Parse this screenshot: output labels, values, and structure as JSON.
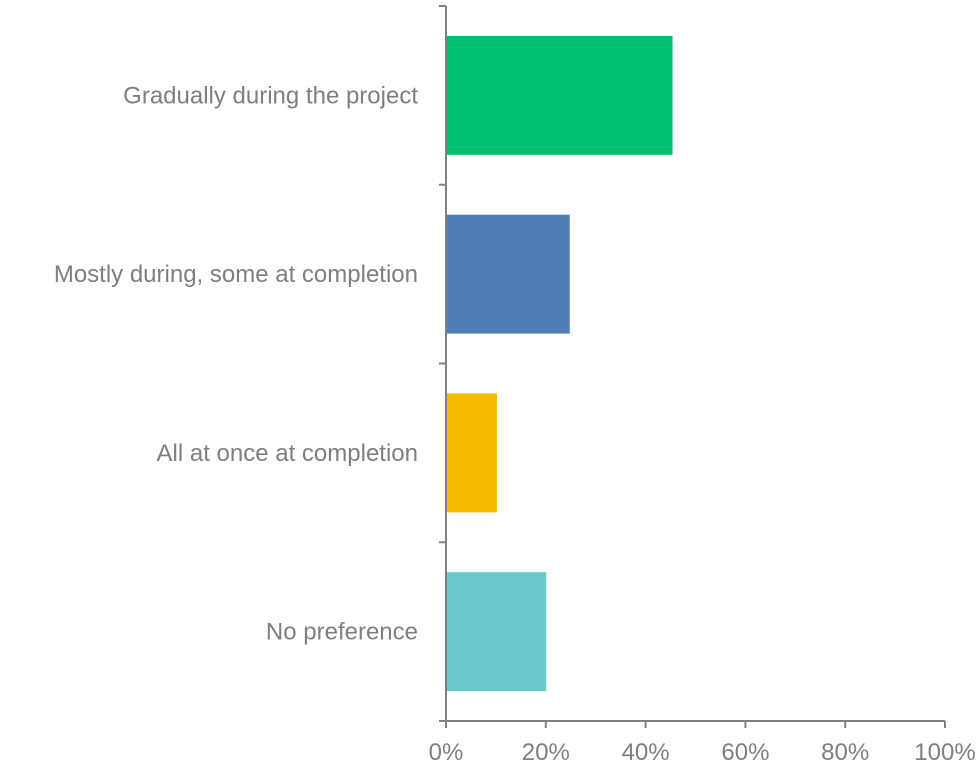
{
  "chart_data": {
    "type": "bar",
    "orientation": "horizontal",
    "title": "",
    "xlabel": "",
    "ylabel": "",
    "categories": [
      "Gradually during the project",
      "Mostly during, some at completion",
      "All at once at completion",
      "No preference"
    ],
    "values": [
      45.4,
      24.8,
      10.2,
      20.1
    ],
    "colors": [
      "#00be70",
      "#4f7db6",
      "#f7bc00",
      "#6cc9cb"
    ],
    "xlim": [
      0,
      100
    ],
    "x_ticks": [
      "0%",
      "20%",
      "40%",
      "60%",
      "80%",
      "100%"
    ],
    "grid": false,
    "legend": "none"
  }
}
